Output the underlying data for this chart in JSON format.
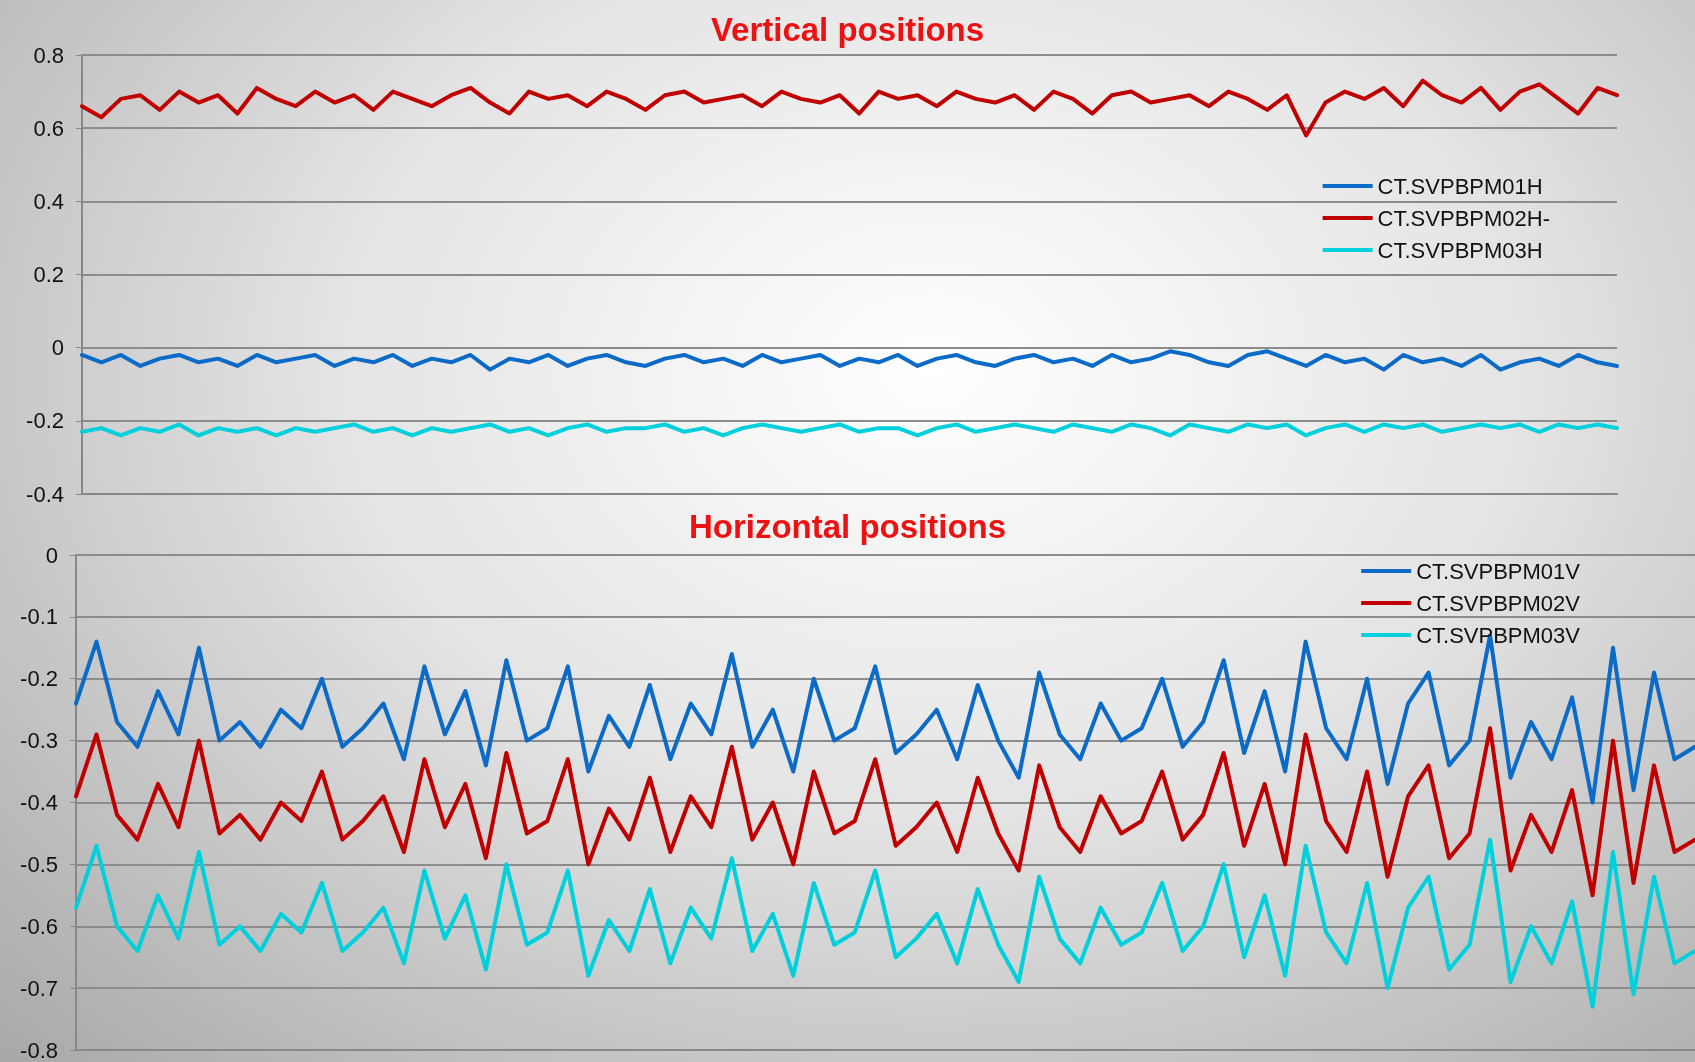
{
  "chart_data": [
    {
      "type": "line",
      "title": "Vertical positions",
      "categories": [
        null,
        null,
        null,
        null,
        null,
        null,
        null,
        null,
        null,
        null,
        null,
        null,
        null,
        null,
        null,
        null,
        null,
        null,
        null,
        null,
        null,
        null,
        null,
        null,
        null,
        null,
        null,
        null,
        null,
        null,
        null,
        null,
        null,
        null,
        null,
        null,
        null,
        null,
        null,
        null,
        null,
        null,
        null,
        null,
        null,
        null,
        null,
        null,
        null,
        null,
        null,
        null,
        null,
        null,
        null,
        null,
        null,
        null,
        null,
        null,
        null,
        null,
        null,
        null,
        null,
        null,
        null,
        null,
        null,
        null,
        null,
        null,
        null,
        null,
        null,
        null,
        null,
        null,
        null,
        null
      ],
      "series": [
        {
          "name": "CT.SVPBPM01H",
          "color": "#0b6bc7",
          "values": [
            -0.02,
            -0.04,
            -0.02,
            -0.05,
            -0.03,
            -0.02,
            -0.04,
            -0.03,
            -0.05,
            -0.02,
            -0.04,
            -0.03,
            -0.02,
            -0.05,
            -0.03,
            -0.04,
            -0.02,
            -0.05,
            -0.03,
            -0.04,
            -0.02,
            -0.06,
            -0.03,
            -0.04,
            -0.02,
            -0.05,
            -0.03,
            -0.02,
            -0.04,
            -0.05,
            -0.03,
            -0.02,
            -0.04,
            -0.03,
            -0.05,
            -0.02,
            -0.04,
            -0.03,
            -0.02,
            -0.05,
            -0.03,
            -0.04,
            -0.02,
            -0.05,
            -0.03,
            -0.02,
            -0.04,
            -0.05,
            -0.03,
            -0.02,
            -0.04,
            -0.03,
            -0.05,
            -0.02,
            -0.04,
            -0.03,
            -0.01,
            -0.02,
            -0.04,
            -0.05,
            -0.02,
            -0.01,
            -0.03,
            -0.05,
            -0.02,
            -0.04,
            -0.03,
            -0.06,
            -0.02,
            -0.04,
            -0.03,
            -0.05,
            -0.02,
            -0.06,
            -0.04,
            -0.03,
            -0.05,
            -0.02,
            -0.04,
            -0.05
          ]
        },
        {
          "name": "CT.SVPBPM02H-",
          "color": "#c00000",
          "values": [
            0.66,
            0.63,
            0.68,
            0.69,
            0.65,
            0.7,
            0.67,
            0.69,
            0.64,
            0.71,
            0.68,
            0.66,
            0.7,
            0.67,
            0.69,
            0.65,
            0.7,
            0.68,
            0.66,
            0.69,
            0.71,
            0.67,
            0.64,
            0.7,
            0.68,
            0.69,
            0.66,
            0.7,
            0.68,
            0.65,
            0.69,
            0.7,
            0.67,
            0.68,
            0.69,
            0.66,
            0.7,
            0.68,
            0.67,
            0.69,
            0.64,
            0.7,
            0.68,
            0.69,
            0.66,
            0.7,
            0.68,
            0.67,
            0.69,
            0.65,
            0.7,
            0.68,
            0.64,
            0.69,
            0.7,
            0.67,
            0.68,
            0.69,
            0.66,
            0.7,
            0.68,
            0.65,
            0.69,
            0.58,
            0.67,
            0.7,
            0.68,
            0.71,
            0.66,
            0.73,
            0.69,
            0.67,
            0.71,
            0.65,
            0.7,
            0.72,
            0.68,
            0.64,
            0.71,
            0.69
          ]
        },
        {
          "name": "CT.SVPBPM03H",
          "color": "#00d0dc",
          "values": [
            -0.23,
            -0.22,
            -0.24,
            -0.22,
            -0.23,
            -0.21,
            -0.24,
            -0.22,
            -0.23,
            -0.22,
            -0.24,
            -0.22,
            -0.23,
            -0.22,
            -0.21,
            -0.23,
            -0.22,
            -0.24,
            -0.22,
            -0.23,
            -0.22,
            -0.21,
            -0.23,
            -0.22,
            -0.24,
            -0.22,
            -0.21,
            -0.23,
            -0.22,
            -0.22,
            -0.21,
            -0.23,
            -0.22,
            -0.24,
            -0.22,
            -0.21,
            -0.22,
            -0.23,
            -0.22,
            -0.21,
            -0.23,
            -0.22,
            -0.22,
            -0.24,
            -0.22,
            -0.21,
            -0.23,
            -0.22,
            -0.21,
            -0.22,
            -0.23,
            -0.21,
            -0.22,
            -0.23,
            -0.21,
            -0.22,
            -0.24,
            -0.21,
            -0.22,
            -0.23,
            -0.21,
            -0.22,
            -0.21,
            -0.24,
            -0.22,
            -0.21,
            -0.23,
            -0.21,
            -0.22,
            -0.21,
            -0.23,
            -0.22,
            -0.21,
            -0.22,
            -0.21,
            -0.23,
            -0.21,
            -0.22,
            -0.21,
            -0.22
          ]
        }
      ],
      "ylim": [
        -0.4,
        0.8
      ],
      "yticks": [
        -0.4,
        -0.2,
        0,
        0.2,
        0.4,
        0.6,
        0.8
      ],
      "grid": "y",
      "legend": "right",
      "marker": "none",
      "line_style": "solid",
      "tick_labels": "y"
    },
    {
      "type": "line",
      "title": "Horizontal positions",
      "categories": [
        null,
        null,
        null,
        null,
        null,
        null,
        null,
        null,
        null,
        null,
        null,
        null,
        null,
        null,
        null,
        null,
        null,
        null,
        null,
        null,
        null,
        null,
        null,
        null,
        null,
        null,
        null,
        null,
        null,
        null,
        null,
        null,
        null,
        null,
        null,
        null,
        null,
        null,
        null,
        null,
        null,
        null,
        null,
        null,
        null,
        null,
        null,
        null,
        null,
        null,
        null,
        null,
        null,
        null,
        null,
        null,
        null,
        null,
        null,
        null,
        null,
        null,
        null,
        null,
        null,
        null,
        null,
        null,
        null,
        null,
        null,
        null,
        null,
        null,
        null,
        null,
        null,
        null,
        null,
        null
      ],
      "series": [
        {
          "name": "CT.SVPBPM01V",
          "color": "#0b6bc7",
          "values": [
            -0.24,
            -0.14,
            -0.27,
            -0.31,
            -0.22,
            -0.29,
            -0.15,
            -0.3,
            -0.27,
            -0.31,
            -0.25,
            -0.28,
            -0.2,
            -0.31,
            -0.28,
            -0.24,
            -0.33,
            -0.18,
            -0.29,
            -0.22,
            -0.34,
            -0.17,
            -0.3,
            -0.28,
            -0.18,
            -0.35,
            -0.26,
            -0.31,
            -0.21,
            -0.33,
            -0.24,
            -0.29,
            -0.16,
            -0.31,
            -0.25,
            -0.35,
            -0.2,
            -0.3,
            -0.28,
            -0.18,
            -0.32,
            -0.29,
            -0.25,
            -0.33,
            -0.21,
            -0.3,
            -0.36,
            -0.19,
            -0.29,
            -0.33,
            -0.24,
            -0.3,
            -0.28,
            -0.2,
            -0.31,
            -0.27,
            -0.17,
            -0.32,
            -0.22,
            -0.35,
            -0.14,
            -0.28,
            -0.33,
            -0.2,
            -0.37,
            -0.24,
            -0.19,
            -0.34,
            -0.3,
            -0.13,
            -0.36,
            -0.27,
            -0.33,
            -0.23,
            -0.4,
            -0.15,
            -0.38,
            -0.19,
            -0.33,
            -0.31
          ]
        },
        {
          "name": "CT.SVPBPM02V",
          "color": "#c00000",
          "values": [
            -0.39,
            -0.29,
            -0.42,
            -0.46,
            -0.37,
            -0.44,
            -0.3,
            -0.45,
            -0.42,
            -0.46,
            -0.4,
            -0.43,
            -0.35,
            -0.46,
            -0.43,
            -0.39,
            -0.48,
            -0.33,
            -0.44,
            -0.37,
            -0.49,
            -0.32,
            -0.45,
            -0.43,
            -0.33,
            -0.5,
            -0.41,
            -0.46,
            -0.36,
            -0.48,
            -0.39,
            -0.44,
            -0.31,
            -0.46,
            -0.4,
            -0.5,
            -0.35,
            -0.45,
            -0.43,
            -0.33,
            -0.47,
            -0.44,
            -0.4,
            -0.48,
            -0.36,
            -0.45,
            -0.51,
            -0.34,
            -0.44,
            -0.48,
            -0.39,
            -0.45,
            -0.43,
            -0.35,
            -0.46,
            -0.42,
            -0.32,
            -0.47,
            -0.37,
            -0.5,
            -0.29,
            -0.43,
            -0.48,
            -0.35,
            -0.52,
            -0.39,
            -0.34,
            -0.49,
            -0.45,
            -0.28,
            -0.51,
            -0.42,
            -0.48,
            -0.38,
            -0.55,
            -0.3,
            -0.53,
            -0.34,
            -0.48,
            -0.46
          ]
        },
        {
          "name": "CT.SVPBPM03V",
          "color": "#00d0dc",
          "values": [
            -0.57,
            -0.47,
            -0.6,
            -0.64,
            -0.55,
            -0.62,
            -0.48,
            -0.63,
            -0.6,
            -0.64,
            -0.58,
            -0.61,
            -0.53,
            -0.64,
            -0.61,
            -0.57,
            -0.66,
            -0.51,
            -0.62,
            -0.55,
            -0.67,
            -0.5,
            -0.63,
            -0.61,
            -0.51,
            -0.68,
            -0.59,
            -0.64,
            -0.54,
            -0.66,
            -0.57,
            -0.62,
            -0.49,
            -0.64,
            -0.58,
            -0.68,
            -0.53,
            -0.63,
            -0.61,
            -0.51,
            -0.65,
            -0.62,
            -0.58,
            -0.66,
            -0.54,
            -0.63,
            -0.69,
            -0.52,
            -0.62,
            -0.66,
            -0.57,
            -0.63,
            -0.61,
            -0.53,
            -0.64,
            -0.6,
            -0.5,
            -0.65,
            -0.55,
            -0.68,
            -0.47,
            -0.61,
            -0.66,
            -0.53,
            -0.7,
            -0.57,
            -0.52,
            -0.67,
            -0.63,
            -0.46,
            -0.69,
            -0.6,
            -0.66,
            -0.56,
            -0.73,
            -0.48,
            -0.71,
            -0.52,
            -0.66,
            -0.64
          ]
        }
      ],
      "ylim": [
        -0.8,
        0
      ],
      "yticks": [
        -0.8,
        -0.7,
        -0.6,
        -0.5,
        -0.4,
        -0.3,
        -0.2,
        -0.1,
        0
      ],
      "grid": "y",
      "legend": "top right",
      "marker": "none",
      "line_style": "solid",
      "tick_labels": "y"
    }
  ]
}
